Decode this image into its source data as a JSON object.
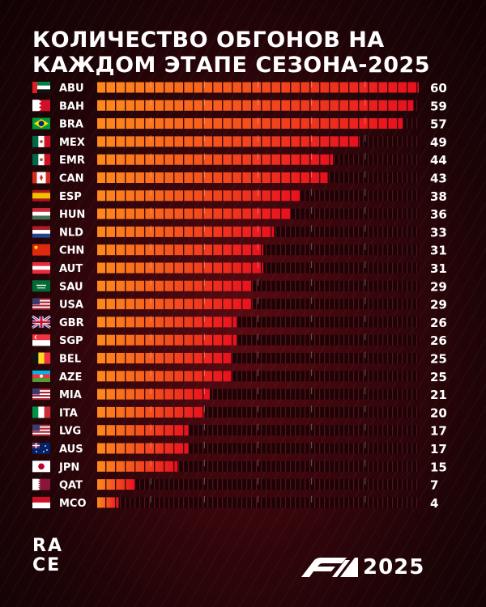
{
  "title": "КОЛИЧЕСТВО ОБГОНОВ НА КАЖДОМ ЭТАПЕ СЕЗОНА-2025",
  "chart_data": {
    "type": "bar",
    "orientation": "horizontal",
    "title": "КОЛИЧЕСТВО ОБГОНОВ НА КАЖДОМ ЭТАПЕ СЕЗОНА-2025",
    "xlim": [
      0,
      60
    ],
    "categories": [
      "ABU",
      "BAH",
      "BRA",
      "MEX",
      "EMR",
      "CAN",
      "ESP",
      "HUN",
      "NLD",
      "CHN",
      "AUT",
      "SAU",
      "USA",
      "GBR",
      "SGP",
      "BEL",
      "AZE",
      "MIA",
      "ITA",
      "LVG",
      "AUS",
      "JPN",
      "QAT",
      "MCO"
    ],
    "values": [
      60,
      59,
      57,
      49,
      44,
      43,
      38,
      36,
      33,
      31,
      31,
      29,
      29,
      26,
      26,
      25,
      25,
      21,
      20,
      17,
      17,
      15,
      7,
      4
    ],
    "flags": [
      "abu-dhabi-flag-icon",
      "bahrain-flag-icon",
      "brazil-flag-icon",
      "mexico-flag-icon",
      "mexico-flag-icon",
      "canada-flag-icon",
      "spain-flag-icon",
      "hungary-flag-icon",
      "netherlands-flag-icon",
      "china-flag-icon",
      "austria-flag-icon",
      "saudi-arabia-flag-icon",
      "usa-flag-icon",
      "great-britain-flag-icon",
      "singapore-flag-icon",
      "belgium-flag-icon",
      "azerbaijan-flag-icon",
      "usa-flag-icon",
      "italy-flag-icon",
      "usa-flag-icon",
      "australia-flag-icon",
      "japan-flag-icon",
      "qatar-flag-icon",
      "monaco-flag-icon"
    ],
    "colors": {
      "bar_start": "#ff7a14",
      "bar_end": "#e8101e",
      "track": "#2b0508",
      "tick": "#7a1a22",
      "label": "#ffffff"
    }
  },
  "logos": {
    "race_lines": [
      "RA",
      "CE"
    ],
    "f1_year": "2025"
  }
}
